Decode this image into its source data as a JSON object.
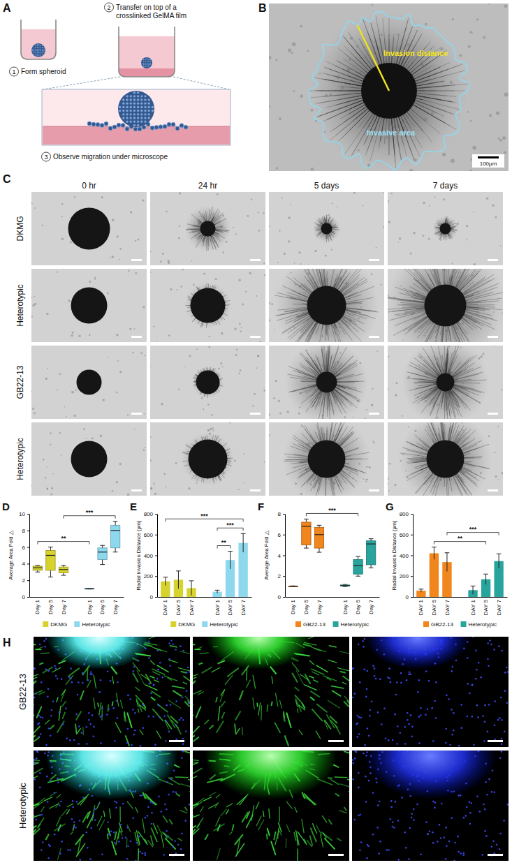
{
  "panels": {
    "A": {
      "letter": "A",
      "steps": [
        {
          "number": "1",
          "text": "Form spheroid"
        },
        {
          "number": "2",
          "text": "Transfer on top of a crosslinked GelMA film"
        },
        {
          "number": "3",
          "text": "Observe migration under microscope"
        }
      ]
    },
    "B": {
      "letter": "B",
      "labels": {
        "distance": "Invasion distance",
        "area": "Invasive area"
      },
      "scale_bar": "100μm"
    },
    "C": {
      "letter": "C",
      "columns": [
        "0 hr",
        "24 hr",
        "5 days",
        "7 days"
      ],
      "rows": [
        "DKMG",
        "Heterotypic",
        "GB22-13",
        "Heterotypic"
      ]
    },
    "H": {
      "letter": "H",
      "rows": [
        "GB22-13",
        "Heterotypic"
      ]
    }
  },
  "chart_data": [
    {
      "panel": "D",
      "type": "box",
      "ylabel": "Average Area Fold △",
      "categories": [
        "Day 1",
        "Day 5",
        "Day 7"
      ],
      "ylim": [
        0,
        10
      ],
      "yticks": [
        0,
        2,
        4,
        6,
        8,
        10
      ],
      "legend": "bottom",
      "series": [
        {
          "name": "DKMG",
          "color": "#d6d22e",
          "min": [
            3.0,
            2.4,
            2.6
          ],
          "q1": [
            3.2,
            3.2,
            2.9
          ],
          "median": [
            3.5,
            5.0,
            3.3
          ],
          "q3": [
            3.7,
            5.6,
            3.6
          ],
          "max": [
            3.8,
            6.0,
            3.8
          ]
        },
        {
          "name": "Heterotypic",
          "color": "#8ed8ee",
          "min": [
            0.95,
            3.9,
            5.4
          ],
          "q1": [
            0.98,
            4.5,
            5.9
          ],
          "median": [
            1.0,
            5.4,
            8.0
          ],
          "q3": [
            1.02,
            5.9,
            8.6
          ],
          "max": [
            1.05,
            6.2,
            9.1
          ]
        }
      ],
      "annotations": [
        {
          "text": "**",
          "from": [
            0,
            0
          ],
          "to": [
            1,
            0
          ]
        },
        {
          "text": "***",
          "from": [
            0,
            2
          ],
          "to": [
            1,
            2
          ]
        }
      ]
    },
    {
      "panel": "E",
      "type": "bar",
      "ylabel": "Radial Invasion Distance (μm)",
      "categories": [
        "DAY 1",
        "DAY 5",
        "DAY 7"
      ],
      "ylim": [
        0,
        800
      ],
      "yticks": [
        0,
        200,
        400,
        600,
        800
      ],
      "legend": "bottom",
      "series": [
        {
          "name": "DKMG",
          "color": "#d6d22e",
          "values": [
            150,
            165,
            85
          ],
          "errors": [
            40,
            85,
            70
          ]
        },
        {
          "name": "Heterotypic",
          "color": "#8ed8ee",
          "values": [
            50,
            355,
            520
          ],
          "errors": [
            15,
            85,
            90
          ]
        }
      ],
      "annotations": [
        {
          "text": "**",
          "from": [
            1,
            0
          ],
          "to": [
            1,
            1
          ]
        },
        {
          "text": "***",
          "from": [
            1,
            0
          ],
          "to": [
            1,
            2
          ]
        },
        {
          "text": "***",
          "from": [
            0,
            0
          ],
          "to": [
            1,
            2
          ]
        }
      ]
    },
    {
      "panel": "F",
      "type": "box",
      "ylabel": "Average Area Fold △",
      "categories": [
        "Day 1",
        "Day 5",
        "Day 7"
      ],
      "ylim": [
        0,
        8
      ],
      "yticks": [
        0,
        2,
        4,
        6,
        8
      ],
      "legend": "bottom",
      "series": [
        {
          "name": "GB22-13",
          "color": "#f0861c",
          "min": [
            0.98,
            4.7,
            4.3
          ],
          "q1": [
            1.0,
            5.0,
            4.7
          ],
          "median": [
            1.02,
            6.8,
            6.0
          ],
          "q3": [
            1.04,
            7.2,
            6.7
          ],
          "max": [
            1.06,
            7.5,
            6.9
          ]
        },
        {
          "name": "Heterotypic",
          "color": "#27a59c",
          "min": [
            1.0,
            2.0,
            2.8
          ],
          "q1": [
            1.05,
            2.2,
            3.1
          ],
          "median": [
            1.1,
            3.0,
            5.1
          ],
          "q3": [
            1.15,
            3.6,
            5.4
          ],
          "max": [
            1.2,
            3.9,
            5.6
          ]
        }
      ],
      "annotations": [
        {
          "text": "***",
          "from": [
            0,
            1
          ],
          "to": [
            1,
            1
          ]
        }
      ]
    },
    {
      "panel": "G",
      "type": "bar",
      "ylabel": "Radial Invasion Distance (μm)",
      "categories": [
        "DAY 1",
        "DAY 5",
        "DAY 7"
      ],
      "ylim": [
        0,
        800
      ],
      "yticks": [
        0,
        200,
        400,
        600,
        800
      ],
      "legend": "bottom",
      "series": [
        {
          "name": "GB22-13",
          "color": "#f0861c",
          "values": [
            60,
            420,
            335
          ],
          "errors": [
            15,
            60,
            90
          ]
        },
        {
          "name": "Heterotypic",
          "color": "#27a59c",
          "values": [
            65,
            170,
            345
          ],
          "errors": [
            40,
            50,
            70
          ]
        }
      ],
      "annotations": [
        {
          "text": "**",
          "from": [
            0,
            1
          ],
          "to": [
            1,
            1
          ]
        },
        {
          "text": "***",
          "from": [
            0,
            2
          ],
          "to": [
            1,
            2
          ]
        }
      ]
    }
  ]
}
